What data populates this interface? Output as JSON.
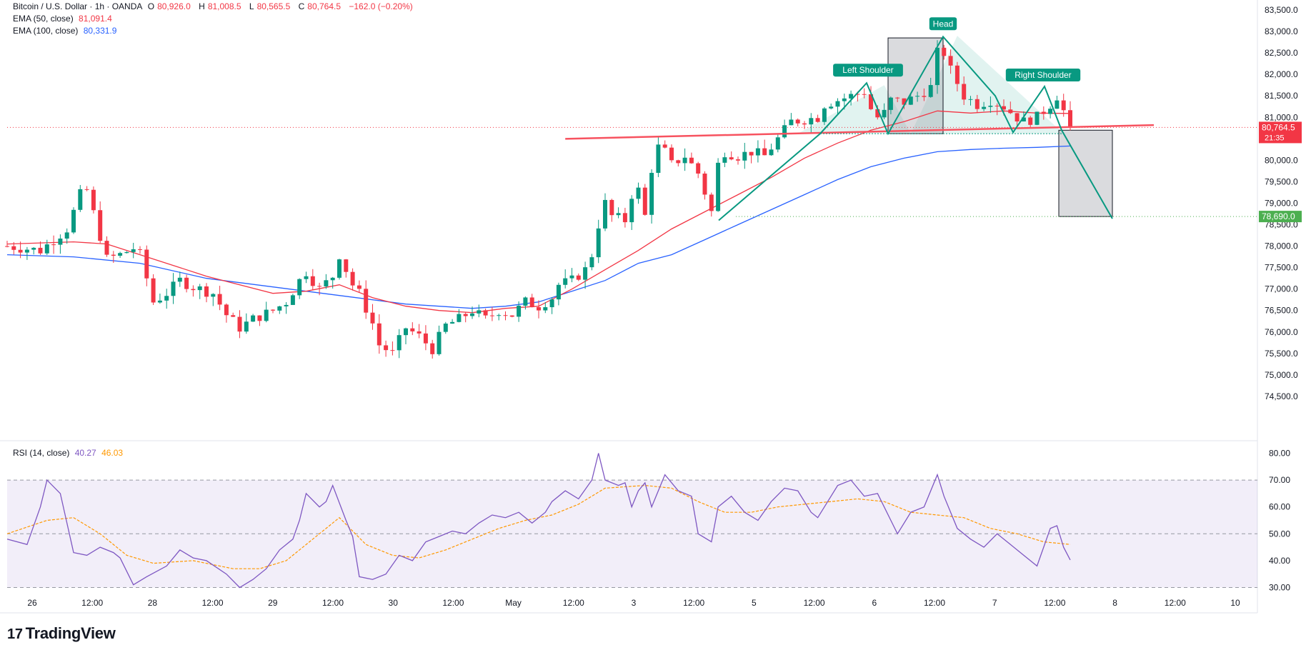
{
  "header": {
    "symbol": "Bitcoin / U.S. Dollar · 1h · OANDA",
    "o_label": "O",
    "o_value": "80,926.0",
    "h_label": "H",
    "h_value": "81,008.5",
    "l_label": "L",
    "l_value": "80,565.5",
    "c_label": "C",
    "c_value": "80,764.5",
    "change": "−162.0 (−0.20%)",
    "ema50_label": "EMA (50, close)",
    "ema50_value": "81,091.4",
    "ema100_label": "EMA (100, close)",
    "ema100_value": "80,331.9"
  },
  "rsi_legend": {
    "label": "RSI (14, close)",
    "rsi_value": "40.27",
    "ma_value": "46.03"
  },
  "brand": {
    "name": "TradingView",
    "icon": "tradingview-logo-icon"
  },
  "colors": {
    "up": "#089981",
    "down": "#f23645",
    "ema50": "#f23645",
    "ema100": "#2962ff",
    "rsi": "#7e57c2",
    "rsi_ma": "#ff9800",
    "pattern": "#089981"
  },
  "chart_data": [
    {
      "type": "candlestick",
      "title": "Bitcoin / U.S. Dollar · 1h · OANDA",
      "ylim": [
        74000,
        83600
      ],
      "y_ticks": [
        "83,500.0",
        "83,000.0",
        "82,500.0",
        "82,000.0",
        "81,500.0",
        "81,000.0",
        "80,500.0",
        "80,000.0",
        "79,500.0",
        "79,000.0",
        "78,500.0",
        "78,000.0",
        "77,500.0",
        "77,000.0",
        "76,500.0",
        "76,000.0",
        "75,500.0",
        "75,000.0",
        "74,500.0"
      ],
      "x_ticks": [
        "26",
        "12:00",
        "28",
        "12:00",
        "29",
        "12:00",
        "30",
        "12:00",
        "May",
        "12:00",
        "3",
        "12:00",
        "5",
        "12:00",
        "6",
        "12:00",
        "7",
        "12:00",
        "8",
        "12:00",
        "10"
      ],
      "last_price": 80764.5,
      "last_price_label": "80,764.5",
      "countdown": "21:35",
      "target_price": 78690.0,
      "target_label": "78,690.0",
      "close_path": [
        [
          0,
          78000
        ],
        [
          5,
          77900
        ],
        [
          9,
          78400
        ],
        [
          11,
          79200
        ],
        [
          12,
          79300
        ],
        [
          15,
          77700
        ],
        [
          17,
          77800
        ],
        [
          19,
          77950
        ],
        [
          20,
          77800
        ],
        [
          22,
          76700
        ],
        [
          24,
          76900
        ],
        [
          26,
          77200
        ],
        [
          28,
          77050
        ],
        [
          31,
          76900
        ],
        [
          33,
          76400
        ],
        [
          35,
          76100
        ],
        [
          37,
          76300
        ],
        [
          40,
          76500
        ],
        [
          42,
          76700
        ],
        [
          44,
          77200
        ],
        [
          45,
          77400
        ],
        [
          47,
          77000
        ],
        [
          49,
          77300
        ],
        [
          50,
          77800
        ],
        [
          52,
          77100
        ],
        [
          53,
          76900
        ],
        [
          55,
          76200
        ],
        [
          56,
          75700
        ],
        [
          58,
          75500
        ],
        [
          60,
          76100
        ],
        [
          62,
          75900
        ],
        [
          64,
          75600
        ],
        [
          66,
          76150
        ],
        [
          68,
          76300
        ],
        [
          70,
          76500
        ],
        [
          72,
          76300
        ],
        [
          74,
          76500
        ],
        [
          76,
          76400
        ],
        [
          78,
          76700
        ],
        [
          80,
          76600
        ],
        [
          82,
          76800
        ],
        [
          83,
          77100
        ],
        [
          85,
          77200
        ],
        [
          87,
          77450
        ],
        [
          88,
          77800
        ],
        [
          89,
          78500
        ],
        [
          90,
          79000
        ],
        [
          91,
          78700
        ],
        [
          93,
          78600
        ],
        [
          94,
          79200
        ],
        [
          95,
          79300
        ],
        [
          96,
          78700
        ],
        [
          97,
          79800
        ],
        [
          98,
          80300
        ],
        [
          99,
          80200
        ],
        [
          100,
          79900
        ],
        [
          102,
          80100
        ],
        [
          104,
          79700
        ],
        [
          106,
          78800
        ],
        [
          107,
          79900
        ],
        [
          108,
          80200
        ],
        [
          110,
          80100
        ],
        [
          112,
          80200
        ],
        [
          114,
          80100
        ],
        [
          116,
          80500
        ],
        [
          118,
          80900
        ],
        [
          120,
          80950
        ],
        [
          122,
          81000
        ],
        [
          123,
          81300
        ],
        [
          125,
          81400
        ],
        [
          127,
          81500
        ],
        [
          129,
          81600
        ],
        [
          130,
          81200
        ],
        [
          131,
          81000
        ],
        [
          132,
          81100
        ],
        [
          133,
          81400
        ],
        [
          135,
          81350
        ],
        [
          137,
          81500
        ],
        [
          139,
          81700
        ],
        [
          140,
          82500
        ],
        [
          141,
          82500
        ],
        [
          142,
          82100
        ],
        [
          143,
          81800
        ],
        [
          144,
          81500
        ],
        [
          146,
          81300
        ],
        [
          148,
          81400
        ],
        [
          150,
          81250
        ],
        [
          152,
          81000
        ],
        [
          153,
          80900
        ],
        [
          155,
          81000
        ],
        [
          157,
          81300
        ],
        [
          158,
          81500
        ],
        [
          159,
          81150
        ],
        [
          160,
          80764.5
        ]
      ],
      "ema50": [
        [
          0,
          78050
        ],
        [
          10,
          78100
        ],
        [
          15,
          78050
        ],
        [
          20,
          77800
        ],
        [
          30,
          77300
        ],
        [
          40,
          76900
        ],
        [
          45,
          76950
        ],
        [
          50,
          77100
        ],
        [
          55,
          76800
        ],
        [
          60,
          76600
        ],
        [
          65,
          76500
        ],
        [
          70,
          76450
        ],
        [
          75,
          76550
        ],
        [
          80,
          76600
        ],
        [
          85,
          77000
        ],
        [
          90,
          77450
        ],
        [
          95,
          77900
        ],
        [
          100,
          78400
        ],
        [
          105,
          78800
        ],
        [
          110,
          79200
        ],
        [
          115,
          79600
        ],
        [
          120,
          80050
        ],
        [
          125,
          80400
        ],
        [
          130,
          80700
        ],
        [
          135,
          80900
        ],
        [
          140,
          81150
        ],
        [
          145,
          81100
        ],
        [
          150,
          81150
        ],
        [
          155,
          81100
        ],
        [
          160,
          81091.4
        ]
      ],
      "ema100": [
        [
          0,
          77800
        ],
        [
          10,
          77750
        ],
        [
          20,
          77600
        ],
        [
          30,
          77250
        ],
        [
          40,
          77050
        ],
        [
          50,
          76850
        ],
        [
          60,
          76650
        ],
        [
          70,
          76550
        ],
        [
          75,
          76600
        ],
        [
          80,
          76700
        ],
        [
          85,
          76950
        ],
        [
          90,
          77200
        ],
        [
          95,
          77600
        ],
        [
          100,
          77800
        ],
        [
          105,
          78150
        ],
        [
          110,
          78500
        ],
        [
          115,
          78850
        ],
        [
          120,
          79200
        ],
        [
          125,
          79550
        ],
        [
          130,
          79850
        ],
        [
          135,
          80050
        ],
        [
          140,
          80200
        ],
        [
          145,
          80250
        ],
        [
          150,
          80280
        ],
        [
          155,
          80300
        ],
        [
          160,
          80331.9
        ]
      ],
      "annotations": [
        "Left Shoulder",
        "Head",
        "Right Shoulder"
      ]
    },
    {
      "type": "line",
      "title": "RSI (14, close)",
      "ylim": [
        28,
        82
      ],
      "y_ticks": [
        "80.00",
        "70.00",
        "60.00",
        "50.00",
        "40.00",
        "30.00"
      ],
      "bands": [
        30,
        50,
        70
      ],
      "rsi": [
        [
          0,
          48
        ],
        [
          3,
          46
        ],
        [
          5,
          60
        ],
        [
          6,
          70
        ],
        [
          8,
          65
        ],
        [
          10,
          43
        ],
        [
          12,
          42
        ],
        [
          14,
          45
        ],
        [
          16,
          43
        ],
        [
          17,
          41
        ],
        [
          19,
          31
        ],
        [
          21,
          34
        ],
        [
          24,
          38
        ],
        [
          26,
          44
        ],
        [
          28,
          41
        ],
        [
          30,
          40
        ],
        [
          33,
          35
        ],
        [
          35,
          30
        ],
        [
          37,
          33
        ],
        [
          39,
          37
        ],
        [
          41,
          44
        ],
        [
          43,
          48
        ],
        [
          44,
          55
        ],
        [
          45,
          65
        ],
        [
          47,
          60
        ],
        [
          48,
          62
        ],
        [
          49,
          68
        ],
        [
          51,
          55
        ],
        [
          52,
          49
        ],
        [
          53,
          34
        ],
        [
          55,
          33
        ],
        [
          57,
          35
        ],
        [
          59,
          42
        ],
        [
          61,
          40
        ],
        [
          63,
          47
        ],
        [
          65,
          49
        ],
        [
          67,
          51
        ],
        [
          69,
          50
        ],
        [
          71,
          54
        ],
        [
          73,
          57
        ],
        [
          75,
          56
        ],
        [
          77,
          58
        ],
        [
          79,
          54
        ],
        [
          81,
          58
        ],
        [
          82,
          62
        ],
        [
          84,
          66
        ],
        [
          86,
          63
        ],
        [
          88,
          70
        ],
        [
          89,
          80
        ],
        [
          90,
          70
        ],
        [
          92,
          68
        ],
        [
          93,
          69
        ],
        [
          94,
          60
        ],
        [
          95,
          66
        ],
        [
          96,
          69
        ],
        [
          97,
          60
        ],
        [
          99,
          72
        ],
        [
          101,
          66
        ],
        [
          103,
          64
        ],
        [
          104,
          50
        ],
        [
          106,
          47
        ],
        [
          107,
          60
        ],
        [
          109,
          64
        ],
        [
          111,
          58
        ],
        [
          113,
          55
        ],
        [
          115,
          62
        ],
        [
          117,
          67
        ],
        [
          119,
          66
        ],
        [
          121,
          58
        ],
        [
          122,
          56
        ],
        [
          123,
          60
        ],
        [
          125,
          68
        ],
        [
          127,
          70
        ],
        [
          129,
          64
        ],
        [
          131,
          65
        ],
        [
          133,
          55
        ],
        [
          134,
          50
        ],
        [
          136,
          58
        ],
        [
          138,
          60
        ],
        [
          140,
          72
        ],
        [
          141,
          64
        ],
        [
          143,
          52
        ],
        [
          145,
          48
        ],
        [
          147,
          45
        ],
        [
          149,
          50
        ],
        [
          151,
          46
        ],
        [
          153,
          42
        ],
        [
          155,
          38
        ],
        [
          157,
          52
        ],
        [
          158,
          53
        ],
        [
          159,
          45
        ],
        [
          160,
          40.27
        ]
      ],
      "rsi_ma": [
        [
          0,
          50
        ],
        [
          6,
          55
        ],
        [
          10,
          56
        ],
        [
          14,
          50
        ],
        [
          18,
          42
        ],
        [
          22,
          39
        ],
        [
          28,
          40
        ],
        [
          34,
          37
        ],
        [
          38,
          37
        ],
        [
          42,
          40
        ],
        [
          46,
          48
        ],
        [
          50,
          56
        ],
        [
          54,
          46
        ],
        [
          58,
          42
        ],
        [
          62,
          41
        ],
        [
          66,
          44
        ],
        [
          70,
          48
        ],
        [
          74,
          52
        ],
        [
          78,
          55
        ],
        [
          82,
          57
        ],
        [
          86,
          61
        ],
        [
          90,
          67
        ],
        [
          96,
          68
        ],
        [
          100,
          67
        ],
        [
          104,
          62
        ],
        [
          108,
          58
        ],
        [
          112,
          58
        ],
        [
          116,
          60
        ],
        [
          120,
          61
        ],
        [
          124,
          62
        ],
        [
          128,
          63
        ],
        [
          132,
          62
        ],
        [
          136,
          58
        ],
        [
          140,
          57
        ],
        [
          144,
          56
        ],
        [
          148,
          52
        ],
        [
          152,
          50
        ],
        [
          156,
          47
        ],
        [
          160,
          46.03
        ]
      ]
    }
  ]
}
